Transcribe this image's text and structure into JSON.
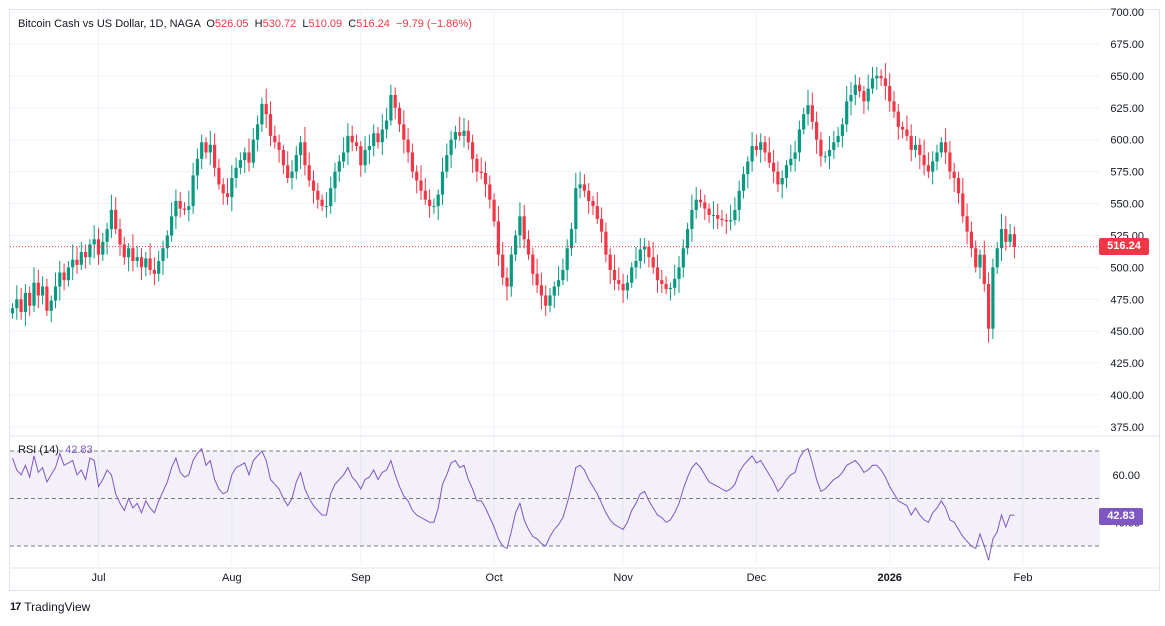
{
  "legend": {
    "symbol": "Bitcoin Cash vs US Dollar, 1D, NAGA",
    "o_label": "O",
    "o_value": "526.05",
    "h_label": "H",
    "h_value": "530.72",
    "l_label": "L",
    "l_value": "510.09",
    "c_label": "C",
    "c_value": "516.24",
    "change": "−9.79 (−1.86%)"
  },
  "rsi_legend": {
    "name": "RSI (14)",
    "value": "42.83"
  },
  "price_badge": "516.24",
  "rsi_badge": "42.83",
  "brand": {
    "name": "TradingView",
    "logo_text": "17"
  },
  "colors": {
    "up": "#089981",
    "down": "#f23645",
    "rsi": "#7e57c2",
    "grid": "#f0f3fa"
  },
  "chart_data": {
    "type": "candlestick",
    "title": "Bitcoin Cash vs US Dollar, 1D, NAGA",
    "ylim": [
      365,
      705
    ],
    "yticks": [
      "700.00",
      "675.00",
      "650.00",
      "625.00",
      "600.00",
      "575.00",
      "550.00",
      "525.00",
      "500.00",
      "475.00",
      "450.00",
      "425.00",
      "400.00",
      "375.00"
    ],
    "last_price": 516.24,
    "xticks": [
      "Jul",
      "Aug",
      "Sep",
      "Oct",
      "Nov",
      "Dec",
      "2026",
      "Feb"
    ],
    "xtick_index": [
      20,
      51,
      81,
      112,
      142,
      173,
      204,
      235
    ],
    "closes": [
      468,
      475,
      465,
      480,
      470,
      488,
      478,
      485,
      466,
      474,
      485,
      496,
      490,
      500,
      506,
      502,
      512,
      508,
      518,
      522,
      510,
      520,
      530,
      545,
      530,
      518,
      508,
      515,
      505,
      508,
      500,
      507,
      498,
      495,
      505,
      515,
      525,
      540,
      552,
      546,
      545,
      548,
      572,
      585,
      598,
      590,
      596,
      578,
      565,
      558,
      555,
      570,
      578,
      584,
      590,
      582,
      600,
      612,
      628,
      620,
      603,
      598,
      592,
      580,
      570,
      575,
      588,
      598,
      580,
      568,
      560,
      553,
      548,
      548,
      562,
      575,
      583,
      590,
      603,
      598,
      595,
      580,
      592,
      595,
      605,
      598,
      608,
      615,
      635,
      625,
      612,
      600,
      590,
      575,
      568,
      560,
      553,
      548,
      548,
      557,
      575,
      588,
      600,
      606,
      603,
      607,
      598,
      585,
      575,
      574,
      565,
      553,
      536,
      510,
      492,
      485,
      510,
      525,
      540,
      522,
      510,
      495,
      486,
      478,
      470,
      478,
      485,
      490,
      498,
      515,
      530,
      562,
      565,
      560,
      552,
      548,
      538,
      528,
      510,
      498,
      490,
      487,
      482,
      488,
      500,
      505,
      514,
      516,
      508,
      500,
      490,
      487,
      483,
      484,
      491,
      500,
      515,
      530,
      545,
      553,
      551,
      546,
      541,
      541,
      538,
      537,
      536,
      537,
      545,
      560,
      573,
      583,
      595,
      592,
      598,
      590,
      582,
      575,
      565,
      570,
      580,
      585,
      590,
      608,
      620,
      627,
      614,
      600,
      587,
      587,
      592,
      598,
      603,
      612,
      630,
      635,
      643,
      638,
      630,
      640,
      648,
      650,
      648,
      642,
      630,
      622,
      610,
      608,
      603,
      592,
      596,
      588,
      580,
      575,
      583,
      590,
      598,
      590,
      575,
      570,
      558,
      540,
      528,
      515,
      500,
      510,
      487,
      452,
      500,
      515,
      530,
      520,
      526,
      516
    ],
    "rsi": [
      67,
      62,
      60,
      64,
      59,
      68,
      61,
      63,
      57,
      60,
      63,
      69,
      64,
      65,
      66,
      60,
      62,
      58,
      67,
      66,
      55,
      58,
      62,
      60,
      52,
      48,
      45,
      50,
      46,
      48,
      44,
      49,
      46,
      44,
      49,
      53,
      57,
      63,
      67,
      61,
      59,
      60,
      66,
      69,
      71,
      64,
      66,
      58,
      54,
      52,
      53,
      60,
      63,
      64,
      65,
      60,
      66,
      68,
      70,
      66,
      58,
      56,
      54,
      50,
      47,
      50,
      57,
      61,
      54,
      50,
      47,
      45,
      43,
      43,
      52,
      56,
      58,
      60,
      63,
      59,
      57,
      54,
      58,
      59,
      62,
      58,
      61,
      62,
      66,
      60,
      55,
      51,
      49,
      45,
      43,
      42,
      41,
      40,
      40,
      46,
      56,
      60,
      65,
      66,
      63,
      64,
      58,
      54,
      49,
      49,
      46,
      42,
      38,
      33,
      30,
      29,
      36,
      44,
      48,
      41,
      37,
      34,
      33,
      31,
      30,
      34,
      37,
      39,
      42,
      48,
      55,
      63,
      64,
      62,
      58,
      55,
      52,
      48,
      44,
      41,
      39,
      38,
      37,
      40,
      45,
      48,
      52,
      53,
      49,
      46,
      43,
      42,
      40,
      41,
      44,
      48,
      54,
      59,
      63,
      65,
      63,
      60,
      57,
      56,
      55,
      54,
      53,
      54,
      56,
      61,
      64,
      66,
      68,
      65,
      66,
      63,
      60,
      57,
      53,
      55,
      58,
      60,
      61,
      67,
      70,
      71,
      65,
      58,
      53,
      54,
      56,
      58,
      59,
      61,
      64,
      65,
      66,
      64,
      61,
      62,
      64,
      64,
      62,
      59,
      55,
      52,
      49,
      48,
      47,
      43,
      46,
      43,
      41,
      40,
      44,
      46,
      49,
      46,
      41,
      40,
      37,
      34,
      32,
      30,
      29,
      35,
      30,
      24,
      33,
      36,
      43,
      38,
      43,
      43
    ]
  }
}
